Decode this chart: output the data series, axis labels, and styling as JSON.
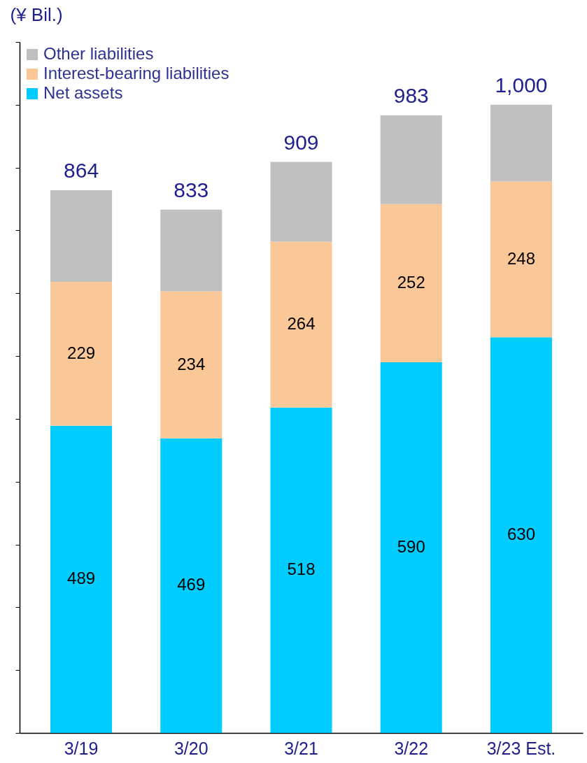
{
  "chart_data": {
    "type": "bar",
    "stacked": true,
    "ylabel": "(¥ Bil.)",
    "categories": [
      "3/19",
      "3/20",
      "3/21",
      "3/22",
      "3/23 Est."
    ],
    "series": [
      {
        "name": "Net assets",
        "color": "#00ccff",
        "values": [
          489,
          469,
          518,
          590,
          630
        ],
        "value_labels": [
          "489",
          "469",
          "518",
          "590",
          "630"
        ]
      },
      {
        "name": "Interest-bearing liabilities",
        "color": "#fac898",
        "values": [
          229,
          234,
          264,
          252,
          248
        ],
        "value_labels": [
          "229",
          "234",
          "264",
          "252",
          "248"
        ]
      },
      {
        "name": "Other liabilities",
        "color": "#c0c0c0",
        "values": [
          146,
          130,
          127,
          141,
          122
        ]
      }
    ],
    "totals": [
      "864",
      "833",
      "909",
      "983",
      "1,000"
    ],
    "ylim": [
      0,
      1100
    ],
    "yticks": [
      {
        "value": 0,
        "label": null
      },
      {
        "value": 100,
        "label": null
      },
      {
        "value": 200,
        "label": null
      },
      {
        "value": 300,
        "label": null
      },
      {
        "value": 400,
        "label": null
      },
      {
        "value": 500,
        "label": null
      },
      {
        "value": 600,
        "label": null
      },
      {
        "value": 700,
        "label": null
      },
      {
        "value": 800,
        "label": null
      },
      {
        "value": 900,
        "label": null
      },
      {
        "value": 1000,
        "label": null
      },
      {
        "value": 1100,
        "label": null
      }
    ],
    "grid": false,
    "legend": "top left"
  }
}
